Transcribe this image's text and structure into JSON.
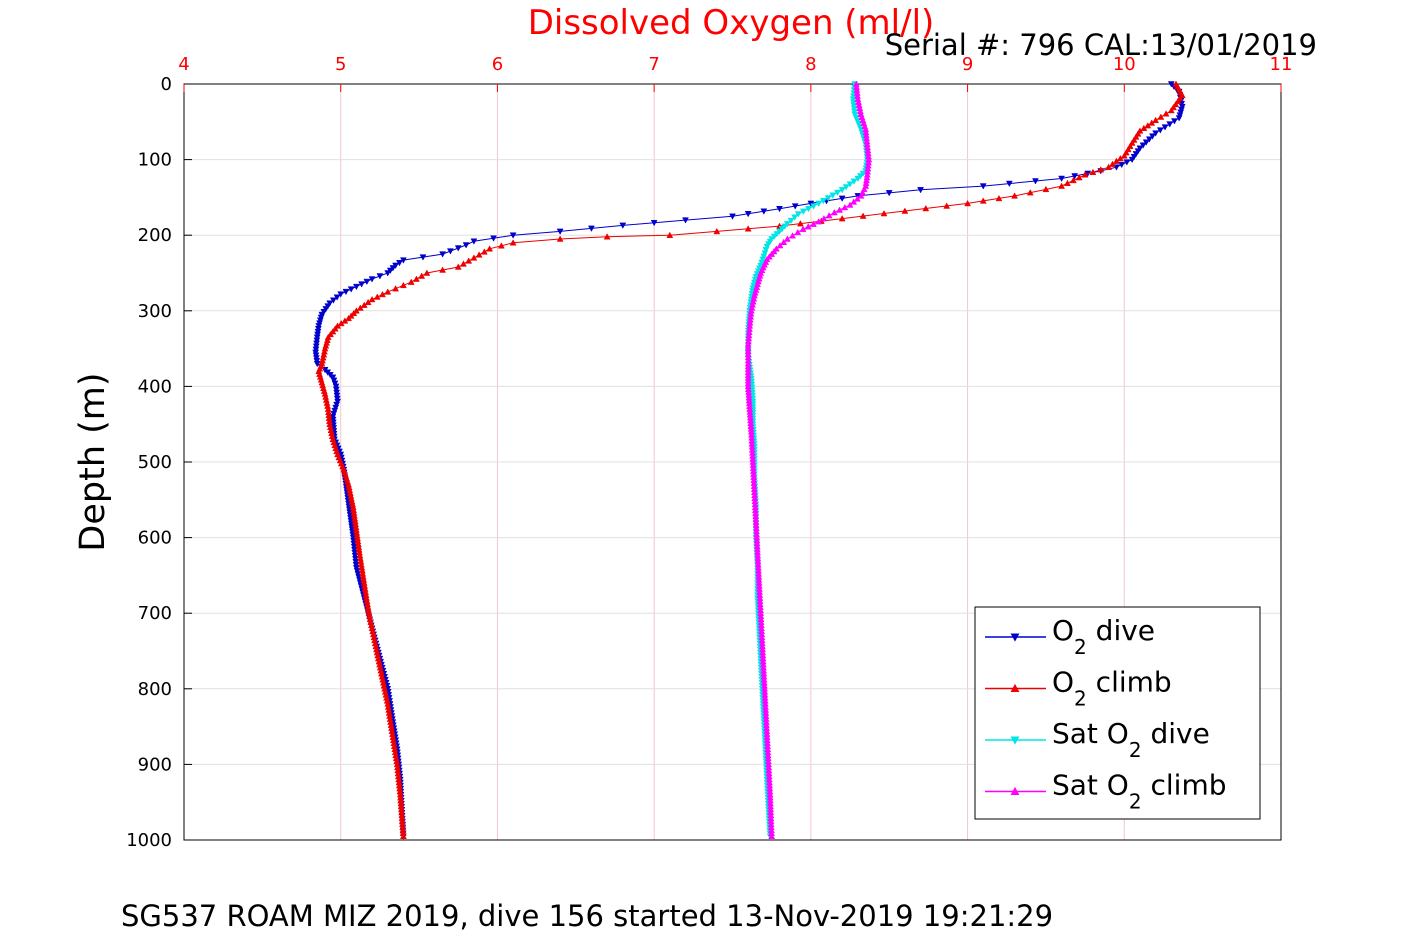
{
  "chart_data": {
    "type": "scatter",
    "title": "Dissolved Oxygen (ml/l)",
    "serial_text": "Serial #: 796  CAL:13/01/2019",
    "caption": "SG537 ROAM MIZ 2019, dive 156 started 13-Nov-2019 19:21:29",
    "xlabel": "Dissolved Oxygen (ml/l)",
    "ylabel": "Depth (m)",
    "xlim": [
      4,
      11
    ],
    "ylim": [
      0,
      1000
    ],
    "y_reversed": true,
    "x_axis_position": "top",
    "grid": true,
    "x_ticks": [
      "4",
      "5",
      "6",
      "7",
      "8",
      "9",
      "10",
      "11"
    ],
    "y_ticks": [
      "0",
      "100",
      "200",
      "300",
      "400",
      "500",
      "600",
      "700",
      "800",
      "900",
      "1000"
    ],
    "legend_position": "bottom-right",
    "legend": [
      {
        "label_parts": [
          "O",
          "2",
          " dive"
        ],
        "color": "#0000cc",
        "marker": "triangle-down"
      },
      {
        "label_parts": [
          "O",
          "2",
          " climb"
        ],
        "color": "#ee0000",
        "marker": "triangle-up"
      },
      {
        "label_parts": [
          "Sat O",
          "2",
          " dive"
        ],
        "color": "#00e5e5",
        "marker": "triangle-down"
      },
      {
        "label_parts": [
          "Sat O",
          "2",
          " climb"
        ],
        "color": "#ff00ff",
        "marker": "triangle-up"
      }
    ],
    "series": [
      {
        "name": "O2 dive",
        "color": "#0000cc",
        "marker": "triangle-down",
        "points": [
          [
            10.3,
            0
          ],
          [
            10.35,
            10
          ],
          [
            10.37,
            30
          ],
          [
            10.35,
            45
          ],
          [
            10.2,
            65
          ],
          [
            10.1,
            85
          ],
          [
            10.05,
            100
          ],
          [
            9.95,
            110
          ],
          [
            9.85,
            115
          ],
          [
            9.6,
            125
          ],
          [
            9.1,
            135
          ],
          [
            8.7,
            140
          ],
          [
            8.3,
            148
          ],
          [
            8.0,
            158
          ],
          [
            7.8,
            165
          ],
          [
            7.5,
            175
          ],
          [
            7.2,
            180
          ],
          [
            6.8,
            187
          ],
          [
            6.4,
            195
          ],
          [
            6.1,
            200
          ],
          [
            5.85,
            208
          ],
          [
            5.8,
            213
          ],
          [
            5.65,
            225
          ],
          [
            5.4,
            233
          ],
          [
            5.35,
            240
          ],
          [
            5.3,
            250
          ],
          [
            5.2,
            258
          ],
          [
            5.1,
            268
          ],
          [
            5.0,
            278
          ],
          [
            4.93,
            290
          ],
          [
            4.88,
            305
          ],
          [
            4.86,
            320
          ],
          [
            4.85,
            335
          ],
          [
            4.84,
            355
          ],
          [
            4.85,
            370
          ],
          [
            4.9,
            378
          ],
          [
            4.95,
            388
          ],
          [
            4.97,
            400
          ],
          [
            4.98,
            420
          ],
          [
            4.95,
            440
          ],
          [
            4.96,
            470
          ],
          [
            5.0,
            490
          ],
          [
            5.02,
            510
          ],
          [
            5.04,
            540
          ],
          [
            5.06,
            570
          ],
          [
            5.08,
            600
          ],
          [
            5.1,
            640
          ],
          [
            5.15,
            680
          ],
          [
            5.2,
            720
          ],
          [
            5.25,
            760
          ],
          [
            5.3,
            800
          ],
          [
            5.33,
            840
          ],
          [
            5.36,
            880
          ],
          [
            5.38,
            920
          ],
          [
            5.39,
            960
          ],
          [
            5.4,
            995
          ]
        ]
      },
      {
        "name": "O2 climb",
        "color": "#ee0000",
        "marker": "triangle-up",
        "points": [
          [
            10.33,
            0
          ],
          [
            10.37,
            15
          ],
          [
            10.3,
            35
          ],
          [
            10.2,
            48
          ],
          [
            10.1,
            62
          ],
          [
            10.05,
            78
          ],
          [
            10.0,
            95
          ],
          [
            9.95,
            102
          ],
          [
            9.9,
            110
          ],
          [
            9.75,
            120
          ],
          [
            9.6,
            135
          ],
          [
            9.3,
            148
          ],
          [
            9.0,
            158
          ],
          [
            8.6,
            168
          ],
          [
            8.2,
            178
          ],
          [
            7.8,
            188
          ],
          [
            7.4,
            195
          ],
          [
            7.1,
            200
          ],
          [
            6.7,
            202
          ],
          [
            6.4,
            205
          ],
          [
            6.1,
            210
          ],
          [
            5.95,
            218
          ],
          [
            5.85,
            230
          ],
          [
            5.75,
            242
          ],
          [
            5.55,
            250
          ],
          [
            5.45,
            262
          ],
          [
            5.3,
            275
          ],
          [
            5.2,
            285
          ],
          [
            5.1,
            300
          ],
          [
            5.05,
            310
          ],
          [
            4.98,
            320
          ],
          [
            4.92,
            335
          ],
          [
            4.9,
            350
          ],
          [
            4.88,
            370
          ],
          [
            4.86,
            380
          ],
          [
            4.88,
            395
          ],
          [
            4.9,
            410
          ],
          [
            4.92,
            430
          ],
          [
            4.93,
            450
          ],
          [
            4.95,
            470
          ],
          [
            4.98,
            490
          ],
          [
            5.02,
            510
          ],
          [
            5.05,
            530
          ],
          [
            5.08,
            560
          ],
          [
            5.1,
            590
          ],
          [
            5.12,
            620
          ],
          [
            5.15,
            660
          ],
          [
            5.18,
            700
          ],
          [
            5.22,
            740
          ],
          [
            5.26,
            780
          ],
          [
            5.3,
            820
          ],
          [
            5.33,
            860
          ],
          [
            5.36,
            900
          ],
          [
            5.38,
            940
          ],
          [
            5.4,
            995
          ]
        ]
      },
      {
        "name": "Sat O2 dive",
        "color": "#00e5e5",
        "marker": "triangle-down",
        "points": [
          [
            8.28,
            0
          ],
          [
            8.27,
            20
          ],
          [
            8.28,
            40
          ],
          [
            8.32,
            60
          ],
          [
            8.35,
            80
          ],
          [
            8.36,
            100
          ],
          [
            8.35,
            115
          ],
          [
            8.3,
            125
          ],
          [
            8.2,
            140
          ],
          [
            8.05,
            158
          ],
          [
            7.92,
            172
          ],
          [
            7.85,
            185
          ],
          [
            7.8,
            195
          ],
          [
            7.75,
            205
          ],
          [
            7.72,
            215
          ],
          [
            7.7,
            228
          ],
          [
            7.68,
            240
          ],
          [
            7.65,
            255
          ],
          [
            7.63,
            270
          ],
          [
            7.62,
            285
          ],
          [
            7.61,
            300
          ],
          [
            7.6,
            330
          ],
          [
            7.6,
            360
          ],
          [
            7.62,
            390
          ],
          [
            7.63,
            420
          ],
          [
            7.63,
            450
          ],
          [
            7.64,
            480
          ],
          [
            7.64,
            520
          ],
          [
            7.65,
            560
          ],
          [
            7.65,
            600
          ],
          [
            7.66,
            640
          ],
          [
            7.66,
            680
          ],
          [
            7.67,
            720
          ],
          [
            7.68,
            760
          ],
          [
            7.69,
            800
          ],
          [
            7.7,
            840
          ],
          [
            7.71,
            880
          ],
          [
            7.72,
            920
          ],
          [
            7.73,
            960
          ],
          [
            7.74,
            995
          ]
        ]
      },
      {
        "name": "Sat O2 climb",
        "color": "#ff00ff",
        "marker": "triangle-up",
        "points": [
          [
            8.29,
            0
          ],
          [
            8.3,
            20
          ],
          [
            8.32,
            40
          ],
          [
            8.35,
            60
          ],
          [
            8.36,
            80
          ],
          [
            8.37,
            100
          ],
          [
            8.36,
            120
          ],
          [
            8.35,
            135
          ],
          [
            8.32,
            148
          ],
          [
            8.25,
            160
          ],
          [
            8.15,
            170
          ],
          [
            8.05,
            182
          ],
          [
            7.95,
            192
          ],
          [
            7.85,
            205
          ],
          [
            7.78,
            218
          ],
          [
            7.72,
            232
          ],
          [
            7.68,
            250
          ],
          [
            7.66,
            265
          ],
          [
            7.64,
            280
          ],
          [
            7.62,
            300
          ],
          [
            7.61,
            320
          ],
          [
            7.6,
            345
          ],
          [
            7.6,
            370
          ],
          [
            7.6,
            400
          ],
          [
            7.61,
            430
          ],
          [
            7.62,
            460
          ],
          [
            7.63,
            500
          ],
          [
            7.64,
            540
          ],
          [
            7.65,
            580
          ],
          [
            7.66,
            620
          ],
          [
            7.67,
            660
          ],
          [
            7.68,
            700
          ],
          [
            7.69,
            740
          ],
          [
            7.7,
            780
          ],
          [
            7.71,
            820
          ],
          [
            7.72,
            860
          ],
          [
            7.73,
            900
          ],
          [
            7.74,
            940
          ],
          [
            7.75,
            995
          ]
        ]
      }
    ]
  }
}
